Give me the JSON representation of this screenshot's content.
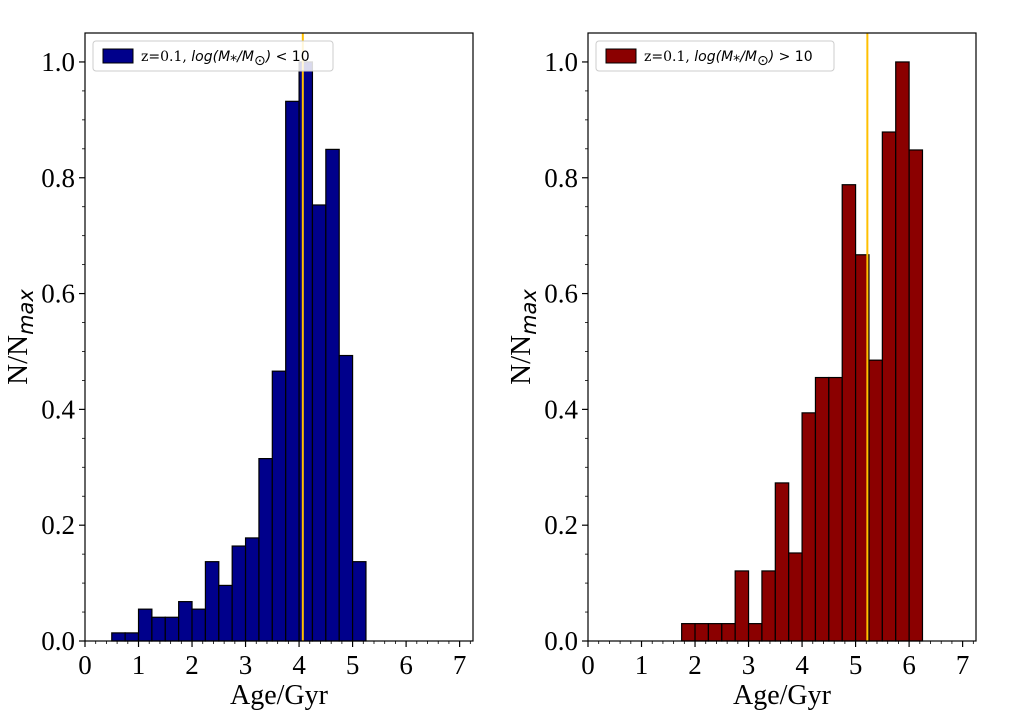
{
  "chart_data": [
    {
      "type": "bar",
      "panel": "left",
      "xlabel": "Age/Gyr",
      "ylabel": "N/N",
      "ylabel_sub": "max",
      "xlim": [
        0,
        7.25
      ],
      "ylim": [
        0,
        1.05
      ],
      "xticks": [
        "0",
        "1",
        "2",
        "3",
        "4",
        "5",
        "6",
        "7"
      ],
      "yticks": [
        "0.0",
        "0.2",
        "0.4",
        "0.6",
        "0.8",
        "1.0"
      ],
      "grid": false,
      "legend_position": "top-left",
      "legend": {
        "prefix": "z=0.1, ",
        "math": "log(M",
        "math_sub": "*",
        "math2": "/M",
        "math2_sub": "⊙",
        "math3": ")",
        "op": " < 10"
      },
      "bar_color": "#00008B",
      "edge_color": "#000000",
      "vline": {
        "x": 4.07,
        "color": "#FFC000"
      },
      "bin_width": 0.25,
      "bin_starts": [
        0.5,
        0.75,
        1.0,
        1.25,
        1.5,
        1.75,
        2.0,
        2.25,
        2.5,
        2.75,
        3.0,
        3.25,
        3.5,
        3.75,
        4.0,
        4.25,
        4.5,
        4.75,
        5.0
      ],
      "values": [
        0.014,
        0.014,
        0.055,
        0.041,
        0.041,
        0.068,
        0.055,
        0.137,
        0.096,
        0.164,
        0.178,
        0.315,
        0.466,
        0.932,
        1.0,
        0.753,
        0.849,
        0.493,
        0.137
      ]
    },
    {
      "type": "bar",
      "panel": "right",
      "xlabel": "Age/Gyr",
      "ylabel": "N/N",
      "ylabel_sub": "max",
      "xlim": [
        0,
        7.25
      ],
      "ylim": [
        0,
        1.05
      ],
      "xticks": [
        "0",
        "1",
        "2",
        "3",
        "4",
        "5",
        "6",
        "7"
      ],
      "yticks": [
        "0.0",
        "0.2",
        "0.4",
        "0.6",
        "0.8",
        "1.0"
      ],
      "grid": false,
      "legend_position": "top-left",
      "legend": {
        "prefix": "z=0.1, ",
        "math": "log(M",
        "math_sub": "*",
        "math2": "/M",
        "math2_sub": "⊙",
        "math3": ")",
        "op": " > 10"
      },
      "bar_color": "#8B0000",
      "edge_color": "#000000",
      "vline": {
        "x": 5.22,
        "color": "#FFC000"
      },
      "bin_width": 0.25,
      "bin_starts": [
        1.75,
        2.0,
        2.25,
        2.5,
        2.75,
        3.0,
        3.25,
        3.5,
        3.75,
        4.0,
        4.25,
        4.5,
        4.75,
        5.0,
        5.25,
        5.5,
        5.75,
        6.0
      ],
      "values": [
        0.03,
        0.03,
        0.03,
        0.03,
        0.121,
        0.03,
        0.121,
        0.273,
        0.152,
        0.394,
        0.455,
        0.455,
        0.788,
        0.667,
        0.485,
        0.879,
        1.0,
        0.848
      ]
    }
  ]
}
